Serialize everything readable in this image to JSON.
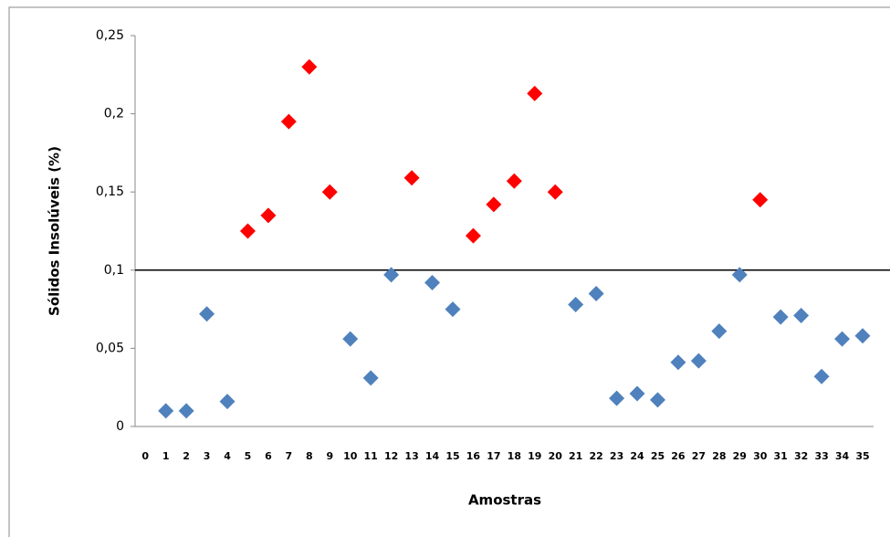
{
  "chart_data": {
    "type": "scatter",
    "y_label": "Sólidos Insolúveis (%)",
    "x_label": "Amostras",
    "xlim": [
      -0.5,
      35
    ],
    "xticks": [
      0,
      1,
      2,
      3,
      4,
      5,
      6,
      7,
      8,
      9,
      10,
      11,
      12,
      13,
      14,
      15,
      16,
      17,
      18,
      19,
      20,
      21,
      22,
      23,
      24,
      25,
      26,
      27,
      28,
      29,
      30,
      31,
      32,
      33,
      34,
      35
    ],
    "ylim": [
      0,
      0.25
    ],
    "yticks": [
      0,
      {
        "value": 0.05,
        "label": "0,05"
      },
      {
        "value": 0.1,
        "label": "0,1"
      },
      {
        "value": 0.15,
        "label": "0,15"
      },
      {
        "value": 0.2,
        "label": "0,2"
      },
      {
        "value": 0.25,
        "label": "0,25"
      }
    ],
    "reference_line": 0.1,
    "series": [
      {
        "color": "#4f81bd",
        "x": [
          1,
          2,
          3,
          4,
          10,
          11,
          12,
          14,
          15,
          21,
          22,
          23,
          24,
          25,
          26,
          27,
          28,
          29,
          31,
          32,
          33,
          34,
          35
        ],
        "values": [
          0.01,
          0.01,
          0.072,
          0.016,
          0.056,
          0.031,
          0.097,
          0.092,
          0.075,
          0.078,
          0.085,
          0.018,
          0.021,
          0.017,
          0.041,
          0.042,
          0.061,
          0.097,
          0.07,
          0.071,
          0.032,
          0.056,
          0.058
        ]
      },
      {
        "color": "#ff0000",
        "x": [
          5,
          6,
          7,
          8,
          9,
          13,
          16,
          17,
          18,
          19,
          20,
          30
        ],
        "values": [
          0.125,
          0.135,
          0.195,
          0.23,
          0.15,
          0.159,
          0.122,
          0.142,
          0.157,
          0.213,
          0.15,
          0.145
        ]
      }
    ]
  }
}
